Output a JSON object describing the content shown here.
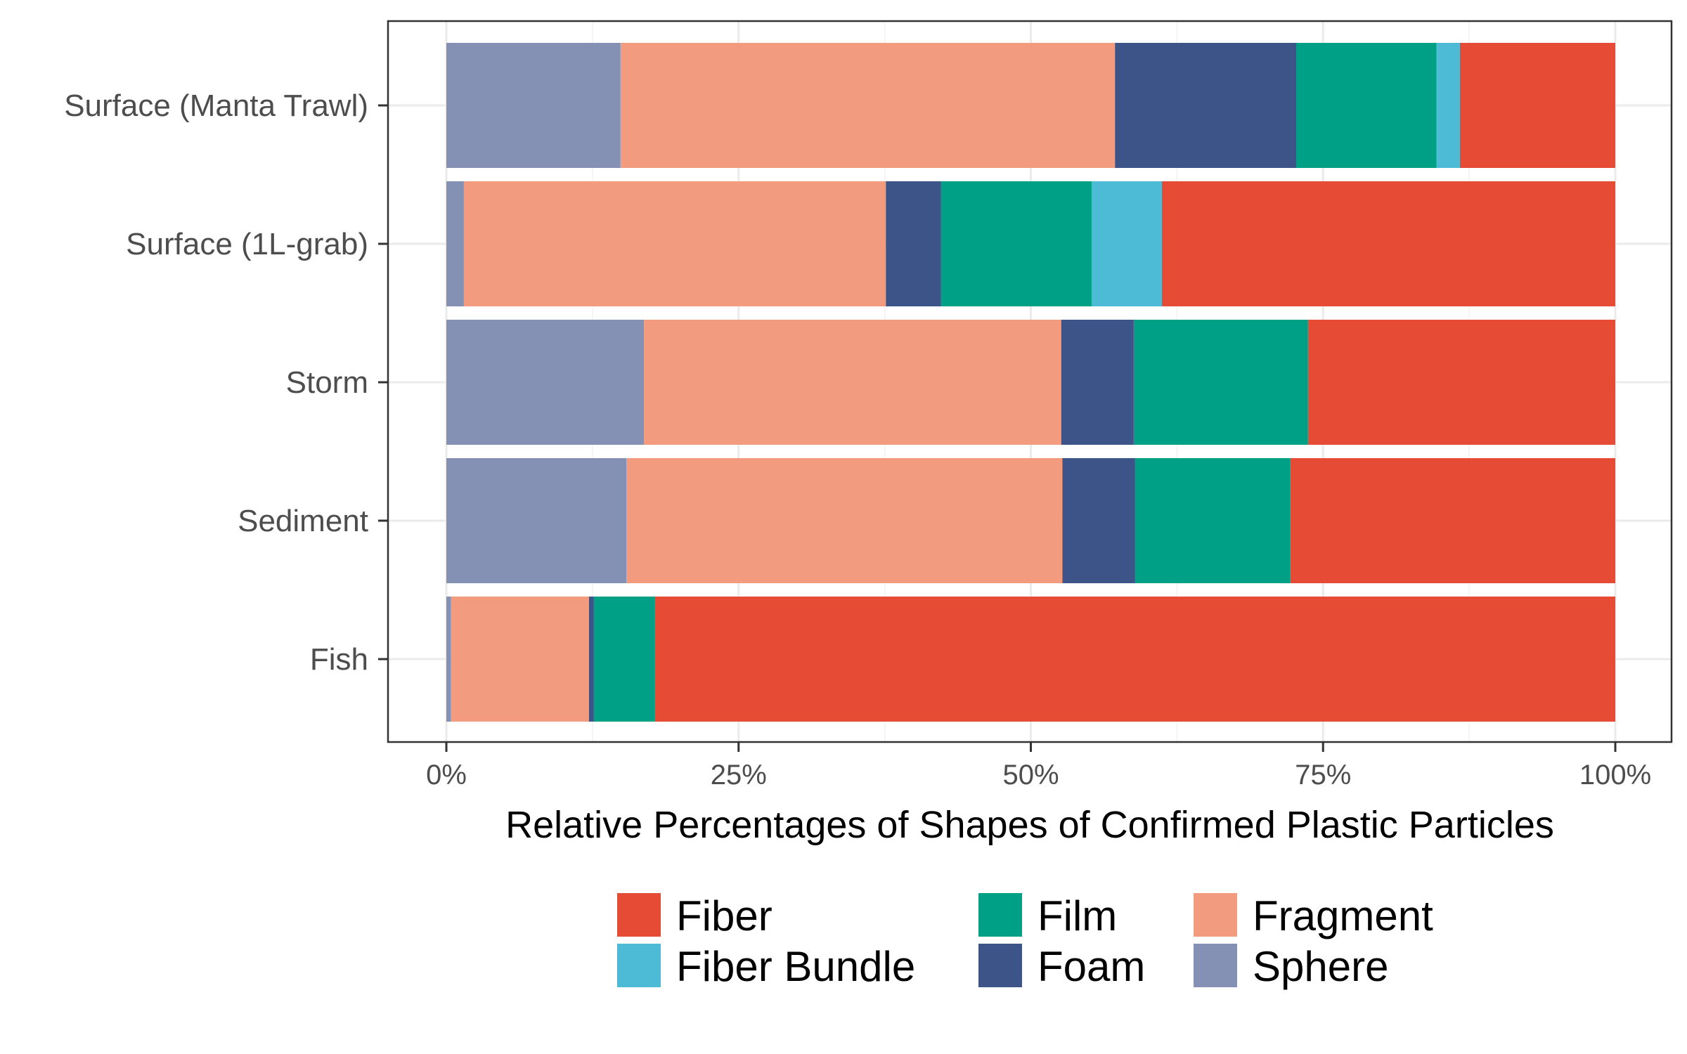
{
  "chart_data": {
    "type": "bar",
    "orientation": "horizontal",
    "stacked": "percent",
    "xlabel": "Relative Percentages of Shapes of Confirmed Plastic Particles",
    "ylabel": "",
    "xlim": [
      0,
      100
    ],
    "x_ticks": [
      "0%",
      "25%",
      "50%",
      "75%",
      "100%"
    ],
    "grid": true,
    "legend_position": "bottom",
    "categories": [
      "Surface (Manta Trawl)",
      "Surface (1L-grab)",
      "Storm",
      "Sediment",
      "Fish"
    ],
    "stack_order": [
      "Sphere",
      "Fragment",
      "Foam",
      "Film",
      "Fiber Bundle",
      "Fiber"
    ],
    "legend_order": [
      "Fiber",
      "Fiber Bundle",
      "Film",
      "Foam",
      "Fragment",
      "Sphere"
    ],
    "series": [
      {
        "name": "Fiber",
        "color": "#E64B35",
        "values": [
          13.3,
          38.8,
          26.3,
          27.8,
          82.2
        ]
      },
      {
        "name": "Fiber Bundle",
        "color": "#4DBBD5",
        "values": [
          2.0,
          6.0,
          0.0,
          0.0,
          0.0
        ]
      },
      {
        "name": "Film",
        "color": "#00A087",
        "values": [
          12.0,
          12.9,
          14.9,
          13.3,
          5.2
        ]
      },
      {
        "name": "Foam",
        "color": "#3C5488",
        "values": [
          15.5,
          4.7,
          6.2,
          6.2,
          0.4
        ]
      },
      {
        "name": "Fragment",
        "color": "#F39B7F",
        "values": [
          42.3,
          36.1,
          35.7,
          37.3,
          11.8
        ]
      },
      {
        "name": "Sphere",
        "color": "#8491B4",
        "values": [
          14.9,
          1.5,
          16.9,
          15.4,
          0.4
        ]
      }
    ]
  }
}
